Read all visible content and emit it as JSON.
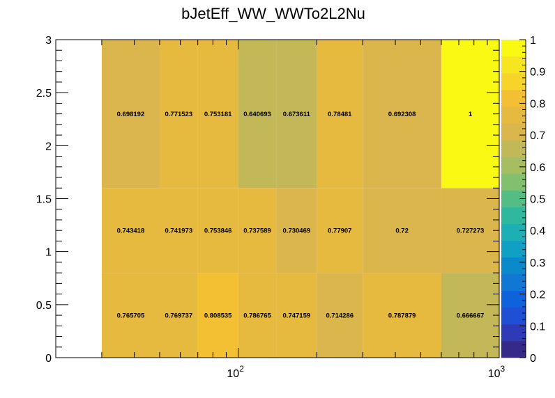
{
  "chart_data": {
    "type": "heatmap",
    "title": "bJetEff_WW_WWTo2L2Nu",
    "xlabel": "",
    "ylabel": "",
    "x_scale": "log",
    "xlim": [
      20,
      1000
    ],
    "ylim": [
      0,
      3
    ],
    "x_bin_edges": [
      30,
      50,
      70,
      100,
      140,
      200,
      300,
      600,
      1000
    ],
    "y_bin_edges": [
      0,
      0.8,
      1.6,
      3.0
    ],
    "x_tick_labels": [
      {
        "value": 100,
        "base": "10",
        "exp": "2"
      },
      {
        "value": 1000,
        "base": "10",
        "exp": "3"
      }
    ],
    "y_ticks": [
      {
        "value": 0,
        "label": "0"
      },
      {
        "value": 0.5,
        "label": "0.5"
      },
      {
        "value": 1,
        "label": "1"
      },
      {
        "value": 1.5,
        "label": "1.5"
      },
      {
        "value": 2,
        "label": "2"
      },
      {
        "value": 2.5,
        "label": "2.5"
      },
      {
        "value": 3,
        "label": "3"
      }
    ],
    "values": [
      [
        0.765705,
        0.769737,
        0.808535,
        0.786765,
        0.747159,
        0.714286,
        0.787879,
        0.666667
      ],
      [
        0.743418,
        0.741973,
        0.753846,
        0.737589,
        0.730469,
        0.77907,
        0.72,
        0.727273
      ],
      [
        0.698192,
        0.771523,
        0.753181,
        0.640693,
        0.673611,
        0.78481,
        0.692308,
        1
      ]
    ],
    "value_labels": [
      [
        "0.765705",
        "0.769737",
        "0.808535",
        "0.786765",
        "0.747159",
        "0.714286",
        "0.787879",
        "0.666667"
      ],
      [
        "0.743418",
        "0.741973",
        "0.753846",
        "0.737589",
        "0.730469",
        "0.77907",
        "0.72",
        "0.727273"
      ],
      [
        "0.698192",
        "0.771523",
        "0.753181",
        "0.640693",
        "0.673611",
        "0.78481",
        "0.692308",
        "1"
      ]
    ],
    "colorbar": {
      "zlim": [
        0,
        1
      ],
      "ticks": [
        {
          "value": 0,
          "label": "0"
        },
        {
          "value": 0.1,
          "label": "0.1"
        },
        {
          "value": 0.2,
          "label": "0.2"
        },
        {
          "value": 0.3,
          "label": "0.3"
        },
        {
          "value": 0.4,
          "label": "0.4"
        },
        {
          "value": 0.5,
          "label": "0.5"
        },
        {
          "value": 0.6,
          "label": "0.6"
        },
        {
          "value": 0.7,
          "label": "0.7"
        },
        {
          "value": 0.8,
          "label": "0.8"
        },
        {
          "value": 0.9,
          "label": "0.9"
        },
        {
          "value": 1,
          "label": "1"
        }
      ],
      "palette": [
        "#352a87",
        "#2f3ab6",
        "#1f4fd4",
        "#0e62dc",
        "#1077d5",
        "#0b8ac9",
        "#10a0c4",
        "#1cafb4",
        "#2fb89e",
        "#54bd84",
        "#82bf6e",
        "#a6bd62",
        "#c3b857",
        "#dbb64c",
        "#e6b93f",
        "#f3c033",
        "#f6d42a",
        "#f7e521",
        "#f9f914"
      ]
    }
  }
}
